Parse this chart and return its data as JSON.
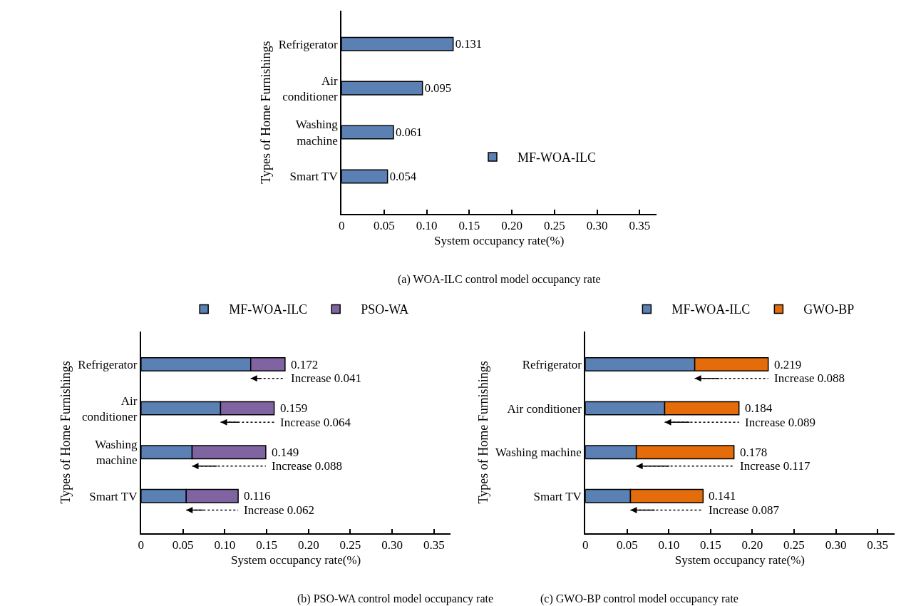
{
  "chart_data": [
    {
      "type": "bar",
      "title": "(a) WOA-ILC control model occupancy rate",
      "orientation": "horizontal",
      "xlabel": "System occupancy rate(%)",
      "ylabel": "Types of Home Furnishings",
      "categories": [
        "Refrigerator",
        "Air conditioner",
        "Washing machine",
        "Smart TV"
      ],
      "series": [
        {
          "name": "MF-WOA-ILC",
          "color": "#5a80b4",
          "values": [
            0.131,
            0.095,
            0.061,
            0.054
          ]
        }
      ],
      "data_labels": true,
      "xlim": [
        0,
        0.37
      ],
      "xticks": [
        0,
        0.05,
        {
          "value": 0.1,
          "label": "0.10"
        },
        0.15,
        {
          "value": 0.2,
          "label": "0.20"
        },
        0.25,
        {
          "value": 0.3,
          "label": "0.30"
        },
        0.35
      ],
      "legend": "right"
    },
    {
      "type": "bar",
      "title": "(b) PSO-WA control model occupancy rate",
      "orientation": "horizontal",
      "stacked": true,
      "xlabel": "System occupancy rate(%)",
      "ylabel": "Types of Home Furnishings",
      "categories": [
        "Refrigerator",
        "Air conditioner",
        "Washing machine",
        "Smart TV"
      ],
      "series": [
        {
          "name": "MF-WOA-ILC",
          "color": "#5a80b4",
          "values": [
            0.131,
            0.095,
            0.061,
            0.054
          ]
        },
        {
          "name": "PSO-WA",
          "color": "#8064a2",
          "values": [
            0.041,
            0.064,
            0.088,
            0.062
          ]
        }
      ],
      "totals": [
        "0.172",
        "0.159",
        "0.149",
        "0.116"
      ],
      "annotations": [
        {
          "text": "Increase 0.041",
          "x": 0.172,
          "y": "Refrigerator"
        },
        {
          "text": "Increase 0.064",
          "x": 0.159,
          "y": "Air conditioner"
        },
        {
          "text": "Increase 0.088",
          "x": 0.149,
          "y": "Washing machine"
        },
        {
          "text": "Increase 0.062",
          "x": 0.116,
          "y": "Smart TV"
        }
      ],
      "xlim": [
        0,
        0.37
      ],
      "xticks": [
        0,
        0.05,
        {
          "value": 0.1,
          "label": "0.10"
        },
        0.15,
        {
          "value": 0.2,
          "label": "0.20"
        },
        0.25,
        {
          "value": 0.3,
          "label": "0.30"
        },
        0.35
      ],
      "legend": "top"
    },
    {
      "type": "bar",
      "title": "(c) GWO-BP control model occupancy rate",
      "orientation": "horizontal",
      "stacked": true,
      "xlabel": "System occupancy rate(%)",
      "ylabel": "Types of Home Furnishings",
      "categories": [
        "Refrigerator",
        "Air conditioner",
        "Washing machine",
        "Smart TV"
      ],
      "series": [
        {
          "name": "MF-WOA-ILC",
          "color": "#5a80b4",
          "values": [
            0.131,
            0.095,
            0.061,
            0.054
          ]
        },
        {
          "name": "GWO-BP",
          "color": "#e46c0a",
          "values": [
            0.088,
            0.089,
            0.117,
            0.087
          ]
        }
      ],
      "totals": [
        "0.219",
        "0.184",
        "0.178",
        "0.141"
      ],
      "annotations": [
        {
          "text": "Increase 0.088",
          "x": 0.219,
          "y": "Refrigerator"
        },
        {
          "text": "Increase 0.089",
          "x": 0.184,
          "y": "Air conditioner"
        },
        {
          "text": "Increase 0.117",
          "x": 0.178,
          "y": "Washing machine"
        },
        {
          "text": "Increase 0.087",
          "x": 0.141,
          "y": "Smart TV"
        }
      ],
      "xlim": [
        0,
        0.37
      ],
      "xticks": [
        0,
        0.05,
        {
          "value": 0.1,
          "label": "0.10"
        },
        0.15,
        {
          "value": 0.2,
          "label": "0.20"
        },
        0.25,
        {
          "value": 0.3,
          "label": "0.30"
        },
        0.35
      ],
      "legend": "top"
    }
  ]
}
